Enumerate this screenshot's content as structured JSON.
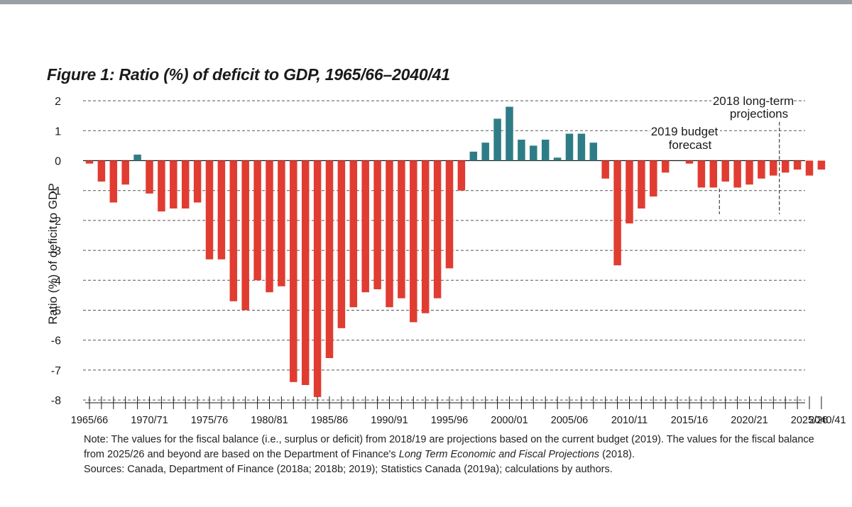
{
  "colors": {
    "top_bar": "#9aa0a6",
    "negative": "#e03c31",
    "positive": "#2e7d86",
    "grid": "#555555",
    "axis": "#1a1a1a"
  },
  "title": "Figure 1: Ratio (%) of deficit to GDP, 1965/66–2040/41",
  "note": {
    "line1_prefix": "Note: The values for the fiscal balance (i.e., surplus or deficit) from 2018/19 are projections based on the current budget (2019). The values for the fiscal balance from 2025/26 and beyond are based on the Department of Finance's ",
    "line1_italic": "Long Term Economic and Fiscal Projections",
    "line1_suffix": " (2018).",
    "sources": "Sources: Canada, Department of Finance (2018a; 2018b; 2019); Statistics Canada (2019a); calculations by authors."
  },
  "chart_data": {
    "type": "bar",
    "title": "Figure 1: Ratio (%) of deficit to GDP, 1965/66–2040/41",
    "ylabel": "Ratio (%) of deficit to GDP",
    "xlabel": "",
    "ylim": [
      -8,
      2
    ],
    "yticks": [
      "2",
      "1",
      "0",
      "-1",
      "-2",
      "-3",
      "-4",
      "-5",
      "-6",
      "-7",
      "-8"
    ],
    "grid": "dashed horizontal",
    "categories": [
      "1965/66",
      "1966/67",
      "1967/68",
      "1968/69",
      "1969/70",
      "1970/71",
      "1971/72",
      "1972/73",
      "1973/74",
      "1974/75",
      "1975/76",
      "1976/77",
      "1977/78",
      "1978/79",
      "1979/80",
      "1980/81",
      "1981/82",
      "1982/83",
      "1983/84",
      "1984/85",
      "1985/86",
      "1986/87",
      "1987/88",
      "1988/89",
      "1989/90",
      "1990/91",
      "1991/92",
      "1992/93",
      "1993/94",
      "1994/95",
      "1995/96",
      "1996/97",
      "1997/98",
      "1998/99",
      "1999/00",
      "2000/01",
      "2001/02",
      "2002/03",
      "2003/04",
      "2004/05",
      "2005/06",
      "2006/07",
      "2007/08",
      "2008/09",
      "2009/10",
      "2010/11",
      "2011/12",
      "2012/13",
      "2013/14",
      "2014/15",
      "2015/16",
      "2016/17",
      "2017/18",
      "2018/19",
      "2019/20",
      "2020/21",
      "2021/22",
      "2022/23",
      "2023/24",
      "2024/25",
      "2025/26",
      "2026/27",
      "2027/28"
    ],
    "values": [
      -0.1,
      -0.7,
      -1.4,
      -0.8,
      0.2,
      -1.1,
      -1.7,
      -1.6,
      -1.6,
      -1.4,
      -3.3,
      -3.3,
      -4.7,
      -5.0,
      -4.0,
      -4.4,
      -4.2,
      -7.4,
      -7.5,
      -7.9,
      -6.6,
      -5.6,
      -4.9,
      -4.4,
      -4.3,
      -4.9,
      -4.6,
      -5.4,
      -5.1,
      -4.6,
      -3.6,
      -1.0,
      0.3,
      0.6,
      1.4,
      1.8,
      0.7,
      0.5,
      0.7,
      0.1,
      0.9,
      0.9,
      0.6,
      -0.6,
      -3.5,
      -2.1,
      -1.6,
      -1.2,
      -0.4,
      0.0,
      -0.1,
      -0.9,
      -0.9,
      -0.7,
      -0.9,
      -0.8,
      -0.6,
      -0.5,
      -0.4,
      -0.3,
      -0.5,
      -0.3,
      null
    ],
    "x_tick_labels": [
      "1965/66",
      "1970/71",
      "1975/76",
      "1980/81",
      "1985/86",
      "1990/91",
      "1995/96",
      "2000/01",
      "2005/06",
      "2010/11",
      "2015/16",
      "2020/21",
      "2025/26",
      "2040/41"
    ],
    "x_tick_label_positions": [
      0,
      5,
      10,
      15,
      20,
      25,
      30,
      35,
      40,
      45,
      50,
      55,
      60,
      61.5
    ],
    "annotations": [
      {
        "text_lines": [
          "2019 budget",
          "forecast"
        ],
        "marker_at_index": 52.5
      },
      {
        "text_lines": [
          "2018 long-term",
          "projections"
        ],
        "marker_at_index": 57.5
      }
    ]
  }
}
